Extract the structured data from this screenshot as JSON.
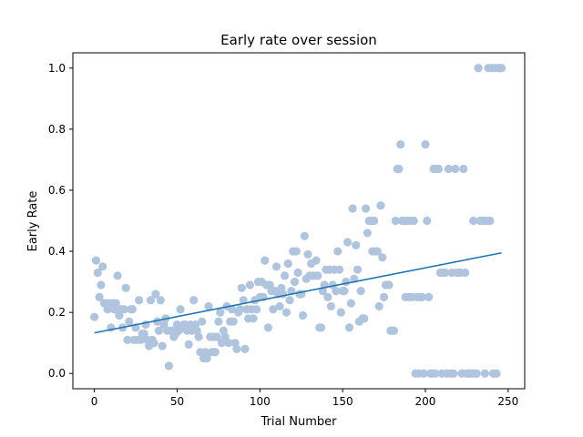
{
  "chart_data": {
    "type": "scatter",
    "title": "Early rate over session",
    "xlabel": "Trial Number",
    "ylabel": "Early Rate",
    "xlim": [
      -13,
      260
    ],
    "ylim": [
      -0.05,
      1.05
    ],
    "x_ticks": [
      0,
      50,
      100,
      150,
      200,
      250
    ],
    "y_ticks": [
      0.0,
      0.2,
      0.4,
      0.6,
      0.8,
      1.0
    ],
    "x_tick_labels": [
      "0",
      "50",
      "100",
      "150",
      "200",
      "250"
    ],
    "y_tick_labels": [
      "0.0",
      "0.2",
      "0.4",
      "0.6",
      "0.8",
      "1.0"
    ],
    "grid": false,
    "point_color": "#b0c4de",
    "trend_color": "#1f77b4",
    "trend": {
      "x": [
        0,
        246
      ],
      "y": [
        0.133,
        0.395
      ]
    },
    "points": [
      [
        0,
        0.185
      ],
      [
        1,
        0.37
      ],
      [
        2,
        0.33
      ],
      [
        3,
        0.25
      ],
      [
        4,
        0.29
      ],
      [
        5,
        0.35
      ],
      [
        6,
        0.23
      ],
      [
        7,
        0.23
      ],
      [
        8,
        0.21
      ],
      [
        9,
        0.23
      ],
      [
        10,
        0.15
      ],
      [
        11,
        0.23
      ],
      [
        12,
        0.21
      ],
      [
        13,
        0.23
      ],
      [
        14,
        0.32
      ],
      [
        15,
        0.19
      ],
      [
        16,
        0.21
      ],
      [
        17,
        0.15
      ],
      [
        18,
        0.21
      ],
      [
        19,
        0.28
      ],
      [
        20,
        0.11
      ],
      [
        21,
        0.17
      ],
      [
        22,
        0.21
      ],
      [
        23,
        0.21
      ],
      [
        24,
        0.11
      ],
      [
        25,
        0.15
      ],
      [
        26,
        0.11
      ],
      [
        27,
        0.24
      ],
      [
        28,
        0.11
      ],
      [
        29,
        0.13
      ],
      [
        30,
        0.13
      ],
      [
        31,
        0.16
      ],
      [
        32,
        0.11
      ],
      [
        33,
        0.09
      ],
      [
        34,
        0.24
      ],
      [
        35,
        0.11
      ],
      [
        36,
        0.1
      ],
      [
        37,
        0.26
      ],
      [
        38,
        0.17
      ],
      [
        39,
        0.14
      ],
      [
        40,
        0.24
      ],
      [
        41,
        0.09
      ],
      [
        42,
        0.16
      ],
      [
        43,
        0.18
      ],
      [
        44,
        0.14
      ],
      [
        45,
        0.025
      ],
      [
        46,
        0.14
      ],
      [
        47,
        0.14
      ],
      [
        48,
        0.12
      ],
      [
        49,
        0.13
      ],
      [
        50,
        0.16
      ],
      [
        51,
        0.14
      ],
      [
        52,
        0.21
      ],
      [
        53,
        0.15
      ],
      [
        54,
        0.16
      ],
      [
        55,
        0.16
      ],
      [
        56,
        0.14
      ],
      [
        57,
        0.095
      ],
      [
        58,
        0.16
      ],
      [
        59,
        0.14
      ],
      [
        60,
        0.24
      ],
      [
        61,
        0.16
      ],
      [
        62,
        0.14
      ],
      [
        63,
        0.12
      ],
      [
        64,
        0.07
      ],
      [
        65,
        0.17
      ],
      [
        66,
        0.05
      ],
      [
        67,
        0.07
      ],
      [
        68,
        0.05
      ],
      [
        69,
        0.22
      ],
      [
        70,
        0.12
      ],
      [
        71,
        0.07
      ],
      [
        72,
        0.12
      ],
      [
        73,
        0.07
      ],
      [
        74,
        0.12
      ],
      [
        75,
        0.17
      ],
      [
        76,
        0.2
      ],
      [
        77,
        0.1
      ],
      [
        78,
        0.14
      ],
      [
        79,
        0.12
      ],
      [
        80,
        0.22
      ],
      [
        81,
        0.1
      ],
      [
        82,
        0.17
      ],
      [
        83,
        0.21
      ],
      [
        84,
        0.17
      ],
      [
        85,
        0.1
      ],
      [
        86,
        0.08
      ],
      [
        87,
        0.2
      ],
      [
        88,
        0.21
      ],
      [
        89,
        0.28
      ],
      [
        90,
        0.24
      ],
      [
        91,
        0.08
      ],
      [
        92,
        0.21
      ],
      [
        93,
        0.18
      ],
      [
        94,
        0.29
      ],
      [
        95,
        0.21
      ],
      [
        96,
        0.18
      ],
      [
        97,
        0.24
      ],
      [
        98,
        0.21
      ],
      [
        99,
        0.3
      ],
      [
        100,
        0.25
      ],
      [
        101,
        0.3
      ],
      [
        102,
        0.25
      ],
      [
        103,
        0.37
      ],
      [
        104,
        0.29
      ],
      [
        105,
        0.15
      ],
      [
        106,
        0.29
      ],
      [
        107,
        0.27
      ],
      [
        108,
        0.21
      ],
      [
        109,
        0.27
      ],
      [
        110,
        0.35
      ],
      [
        111,
        0.26
      ],
      [
        112,
        0.22
      ],
      [
        113,
        0.28
      ],
      [
        114,
        0.26
      ],
      [
        115,
        0.32
      ],
      [
        116,
        0.2
      ],
      [
        117,
        0.36
      ],
      [
        118,
        0.24
      ],
      [
        119,
        0.27
      ],
      [
        120,
        0.4
      ],
      [
        121,
        0.3
      ],
      [
        122,
        0.4
      ],
      [
        123,
        0.33
      ],
      [
        124,
        0.26
      ],
      [
        125,
        0.26
      ],
      [
        126,
        0.19
      ],
      [
        127,
        0.45
      ],
      [
        128,
        0.31
      ],
      [
        129,
        0.39
      ],
      [
        130,
        0.32
      ],
      [
        131,
        0.36
      ],
      [
        132,
        0.32
      ],
      [
        133,
        0.32
      ],
      [
        134,
        0.37
      ],
      [
        135,
        0.32
      ],
      [
        136,
        0.15
      ],
      [
        137,
        0.15
      ],
      [
        138,
        0.27
      ],
      [
        139,
        0.29
      ],
      [
        140,
        0.34
      ],
      [
        141,
        0.25
      ],
      [
        142,
        0.34
      ],
      [
        143,
        0.22
      ],
      [
        144,
        0.29
      ],
      [
        145,
        0.34
      ],
      [
        146,
        0.27
      ],
      [
        147,
        0.4
      ],
      [
        148,
        0.34
      ],
      [
        149,
        0.2
      ],
      [
        150,
        0.27
      ],
      [
        151,
        0.27
      ],
      [
        152,
        0.3
      ],
      [
        153,
        0.43
      ],
      [
        154,
        0.15
      ],
      [
        155,
        0.23
      ],
      [
        156,
        0.54
      ],
      [
        157,
        0.31
      ],
      [
        158,
        0.42
      ],
      [
        159,
        0.34
      ],
      [
        160,
        0.17
      ],
      [
        161,
        0.27
      ],
      [
        162,
        0.18
      ],
      [
        163,
        0.18
      ],
      [
        164,
        0.54
      ],
      [
        165,
        0.46
      ],
      [
        166,
        0.5
      ],
      [
        167,
        0.5
      ],
      [
        168,
        0.4
      ],
      [
        169,
        0.5
      ],
      [
        170,
        0.4
      ],
      [
        171,
        0.4
      ],
      [
        172,
        0.22
      ],
      [
        173,
        0.55
      ],
      [
        174,
        0.38
      ],
      [
        175,
        0.25
      ],
      [
        176,
        0.29
      ],
      [
        177,
        0.29
      ],
      [
        178,
        0.29
      ],
      [
        179,
        0.14
      ],
      [
        180,
        0.14
      ],
      [
        181,
        0.14
      ],
      [
        182,
        0.5
      ],
      [
        183,
        0.67
      ],
      [
        184,
        0.67
      ],
      [
        185,
        0.75
      ],
      [
        186,
        0.5
      ],
      [
        187,
        0.5
      ],
      [
        188,
        0.25
      ],
      [
        189,
        0.5
      ],
      [
        190,
        0.25
      ],
      [
        191,
        0.5
      ],
      [
        192,
        0.25
      ],
      [
        193,
        0.5
      ],
      [
        194,
        0.0
      ],
      [
        195,
        0.25
      ],
      [
        196,
        0.0
      ],
      [
        197,
        0.25
      ],
      [
        198,
        0.25
      ],
      [
        199,
        0.0
      ],
      [
        200,
        0.75
      ],
      [
        201,
        0.5
      ],
      [
        202,
        0.25
      ],
      [
        203,
        0.0
      ],
      [
        204,
        0.0
      ],
      [
        205,
        0.67
      ],
      [
        206,
        0.0
      ],
      [
        207,
        0.67
      ],
      [
        208,
        0.67
      ],
      [
        209,
        0.33
      ],
      [
        210,
        0.0
      ],
      [
        211,
        0.33
      ],
      [
        212,
        0.33
      ],
      [
        213,
        0.0
      ],
      [
        214,
        0.67
      ],
      [
        215,
        0.0
      ],
      [
        216,
        0.33
      ],
      [
        217,
        0.0
      ],
      [
        218,
        0.67
      ],
      [
        219,
        0.33
      ],
      [
        220,
        0.33
      ],
      [
        221,
        0.33
      ],
      [
        222,
        0.0
      ],
      [
        223,
        0.67
      ],
      [
        224,
        0.33
      ],
      [
        225,
        0.0
      ],
      [
        226,
        0.0
      ],
      [
        227,
        0.0
      ],
      [
        228,
        0.0
      ],
      [
        229,
        0.5
      ],
      [
        230,
        0.0
      ],
      [
        231,
        0.0
      ],
      [
        232,
        1.0
      ],
      [
        233,
        0.5
      ],
      [
        234,
        0.5
      ],
      [
        235,
        0.5
      ],
      [
        236,
        0.0
      ],
      [
        237,
        0.5
      ],
      [
        238,
        1.0
      ],
      [
        239,
        0.5
      ],
      [
        240,
        1.0
      ],
      [
        241,
        0.0
      ],
      [
        242,
        1.0
      ],
      [
        243,
        0.0
      ],
      [
        244,
        1.0
      ],
      [
        245,
        1.0
      ],
      [
        246,
        1.0
      ]
    ]
  }
}
